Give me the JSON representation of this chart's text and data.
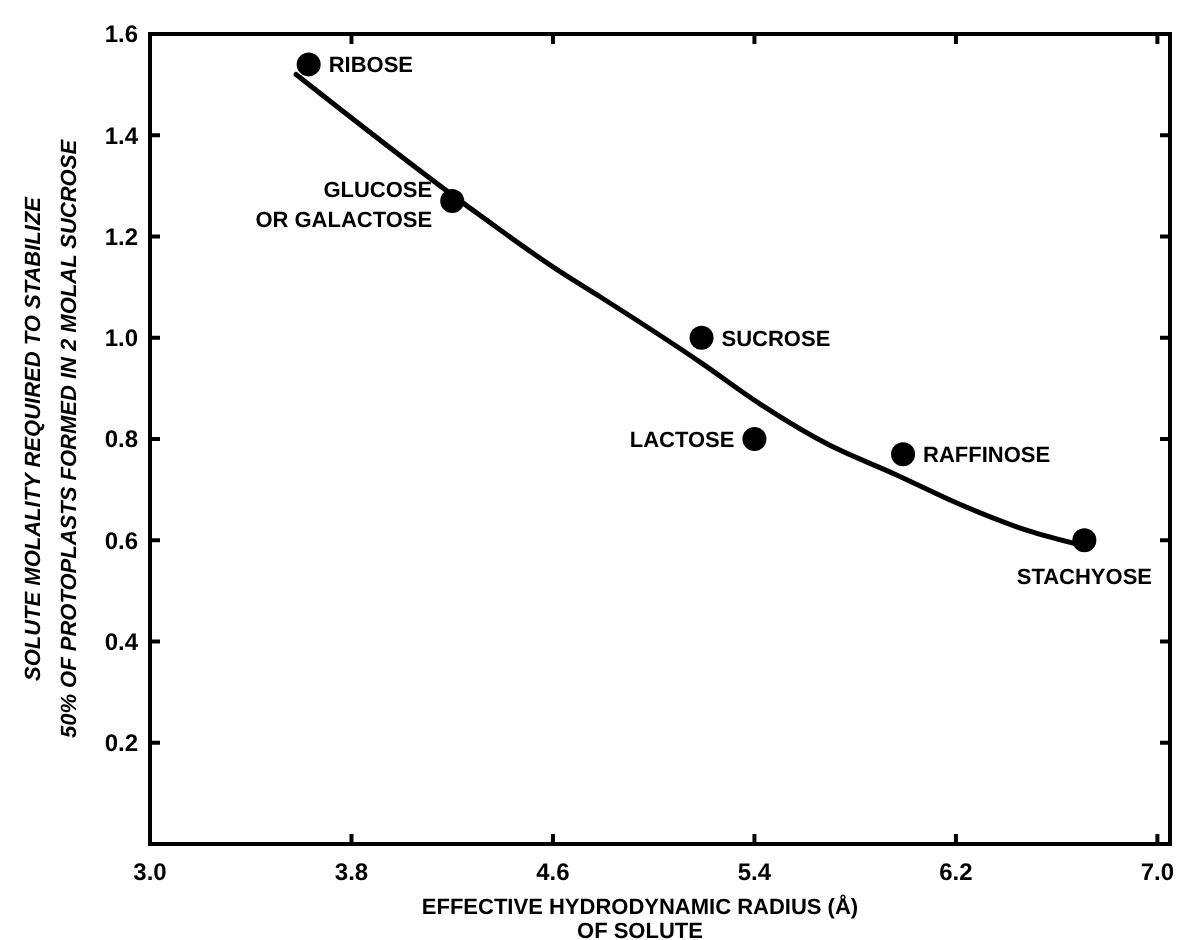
{
  "chart_data": {
    "type": "scatter",
    "xlabel": "EFFECTIVE HYDRODYNAMIC RADIUS (Å)\nOF SOLUTE",
    "ylabel": "SOLUTE MOLALITY REQUIRED TO STABILIZE\n50% OF PROTOPLASTS FORMED IN 2 MOLAL SUCROSE",
    "xlim": [
      3.0,
      7.05
    ],
    "xticks": [
      {
        "value": 3,
        "label": "3.0"
      },
      3.8,
      4.6,
      5.4,
      6.2,
      {
        "value": 7,
        "label": "7.0"
      }
    ],
    "ylim": [
      0,
      1.6
    ],
    "yticks": [
      {
        "value": 0,
        "label": null
      },
      0.2,
      0.4,
      0.6,
      0.8,
      {
        "value": 1,
        "label": "1.0"
      },
      1.2,
      1.4,
      1.6
    ],
    "grid": false,
    "series": [
      {
        "color": "#000000",
        "marker": "circle",
        "x": [
          3.63,
          4.2,
          5.19,
          5.4,
          5.99,
          6.71
        ],
        "values": [
          1.54,
          1.27,
          1.0,
          0.8,
          0.77,
          0.6
        ]
      },
      {
        "type": "line",
        "color": "#000000",
        "line_style": "solid",
        "x": [
          3.58,
          4.26,
          4.63,
          4.79,
          5.19,
          5.42,
          5.69,
          5.96,
          6.22,
          6.48,
          6.7
        ],
        "values": [
          1.52,
          1.26,
          1.13,
          1.08,
          0.95,
          0.87,
          0.79,
          0.73,
          0.67,
          0.62,
          0.59
        ]
      }
    ],
    "annotations": [
      {
        "text": "RIBOSE",
        "x": 3.63,
        "y": 1.54
      },
      {
        "text": "GLUCOSE\nOR GALACTOSE",
        "x": 4.2,
        "y": 1.27
      },
      {
        "text": "SUCROSE",
        "x": 5.19,
        "y": 1.0
      },
      {
        "text": "LACTOSE",
        "x": 5.4,
        "y": 0.8
      },
      {
        "text": "RAFFINOSE",
        "x": 5.99,
        "y": 0.77
      },
      {
        "text": "STACHYOSE",
        "x": 6.71,
        "y": 0.6
      }
    ]
  }
}
